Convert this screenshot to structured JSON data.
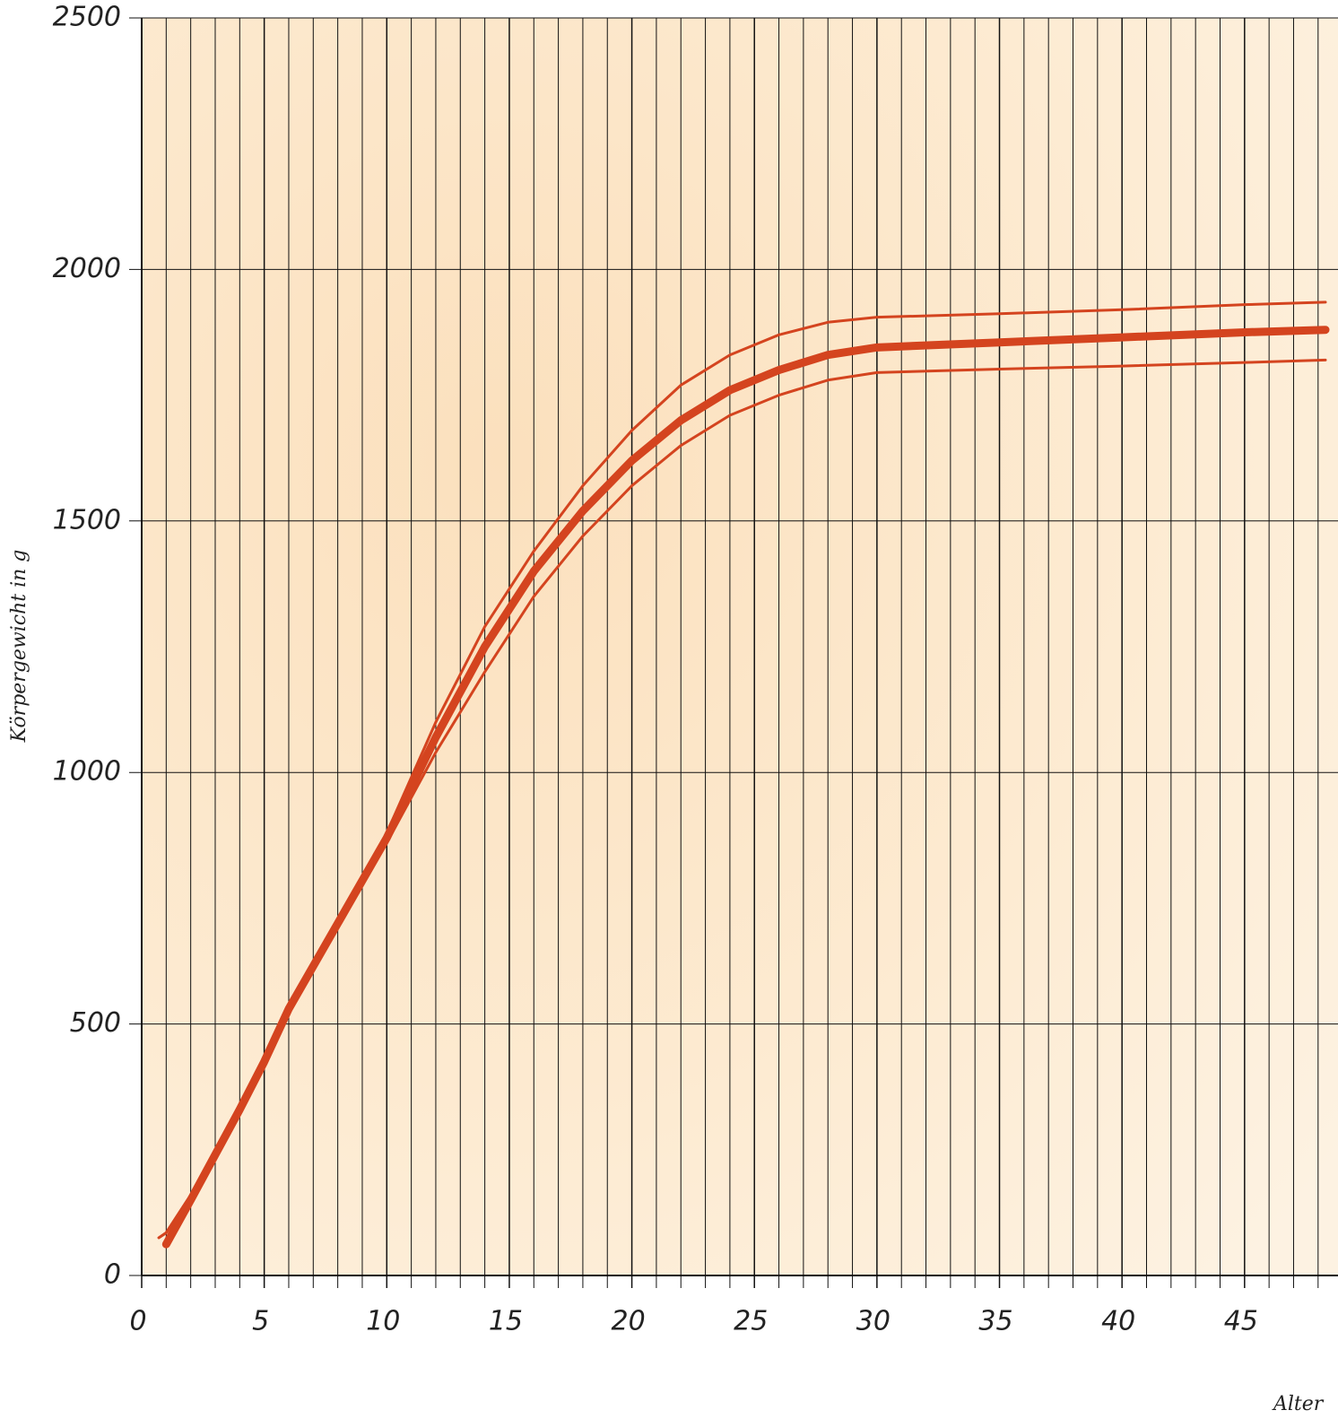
{
  "chart_data": {
    "type": "line",
    "y_label": "Körpergewicht in g",
    "x_label": "Alter",
    "x": [
      0.7,
      1,
      2,
      3,
      4,
      5,
      6,
      8,
      10,
      12,
      14,
      16,
      18,
      20,
      22,
      24,
      26,
      28,
      30,
      35,
      40,
      45,
      48.3
    ],
    "series": [
      {
        "color": "#d4441f",
        "line_width": 3,
        "values": [
          75,
          85,
          160,
          250,
          340,
          430,
          535,
          705,
          880,
          1100,
          1290,
          1440,
          1570,
          1680,
          1770,
          1830,
          1870,
          1895,
          1905,
          1912,
          1920,
          1930,
          1935
        ]
      },
      {
        "color": "#d4441f",
        "line_width": 3,
        "values": [
          75,
          85,
          160,
          250,
          340,
          430,
          530,
          695,
          860,
          1040,
          1200,
          1350,
          1470,
          1570,
          1650,
          1710,
          1750,
          1780,
          1795,
          1802,
          1808,
          1815,
          1820
        ]
      },
      {
        "color": "#d4441f",
        "line_width": 9,
        "values": [
          null,
          62,
          150,
          240,
          330,
          425,
          530,
          700,
          870,
          1070,
          1250,
          1400,
          1520,
          1620,
          1700,
          1760,
          1800,
          1830,
          1845,
          1855,
          1865,
          1875,
          1880
        ]
      }
    ],
    "xlim": [
      0,
      48.3
    ],
    "ylim": [
      0,
      2500
    ],
    "xticks": [
      0,
      5,
      10,
      15,
      20,
      25,
      30,
      35,
      40,
      45
    ],
    "xminorticks": [
      1,
      2,
      3,
      4,
      6,
      7,
      8,
      9,
      11,
      12,
      13,
      14,
      16,
      17,
      18,
      19,
      21,
      22,
      23,
      24,
      26,
      27,
      28,
      29,
      31,
      32,
      33,
      34,
      36,
      37,
      38,
      39,
      41,
      42,
      43,
      44,
      46,
      47,
      48
    ],
    "yticks": [
      0,
      500,
      1000,
      1500,
      2000,
      2500
    ],
    "grid": true
  }
}
